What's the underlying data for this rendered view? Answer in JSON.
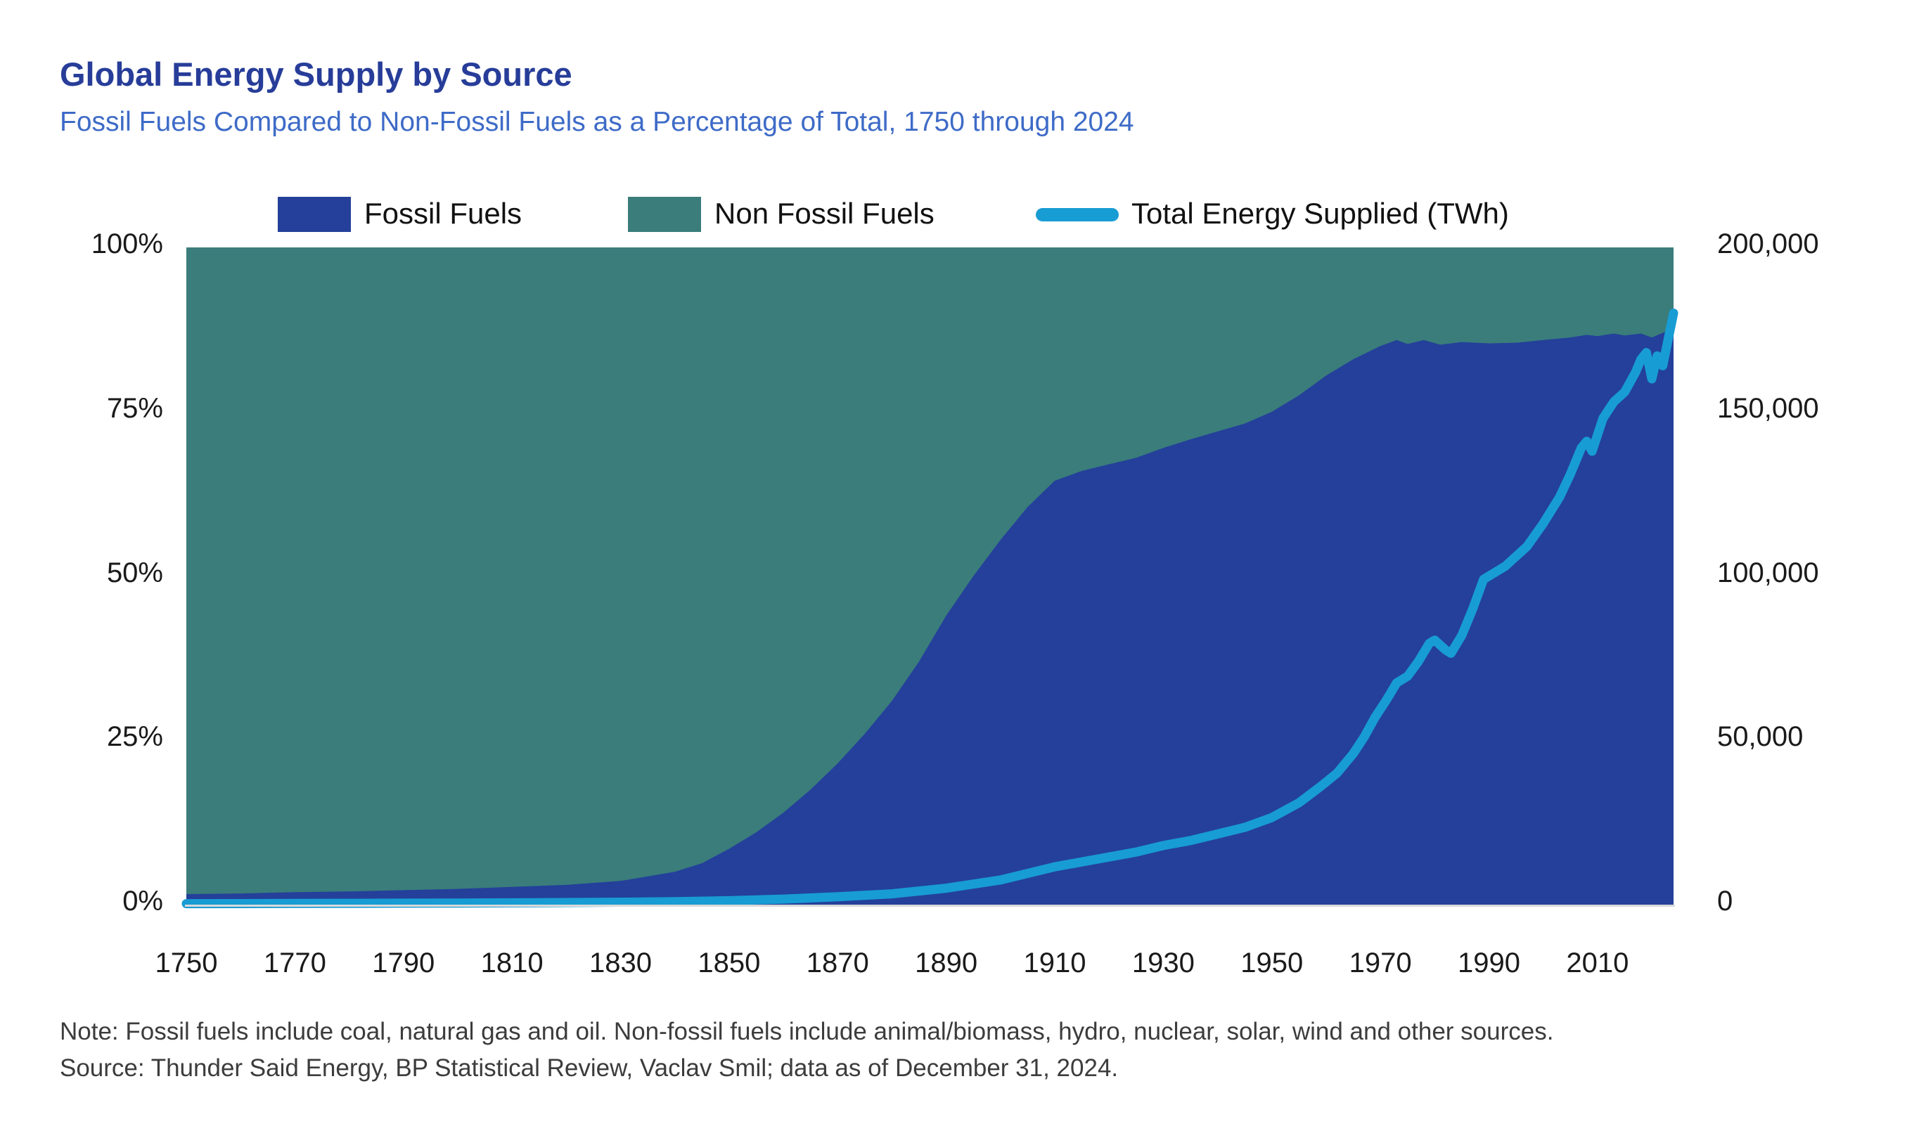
{
  "page": {
    "title": "Global Energy Supply by Source",
    "subtitle": "Fossil Fuels Compared to Non-Fossil Fuels as a Percentage of Total, 1750 through 2024",
    "note": "Note: Fossil fuels include coal, natural gas and oil. Non-fossil fuels include animal/biomass, hydro, nuclear, solar, wind and other sources.",
    "source": "Source: Thunder Said Energy, BP Statistical Review, Vaclav Smil; data as of December 31, 2024."
  },
  "colors": {
    "fossil": "#24409A",
    "non_fossil": "#3A7D7B",
    "total_line": "#189CD4",
    "title": "#273D99",
    "subtitle": "#3E6BC7",
    "axis_text": "#1A1A1A",
    "note_text": "#3C3C3C",
    "axis_line": "#D9D9D9"
  },
  "legend": {
    "items": [
      {
        "label": "Fossil Fuels",
        "swatch": "square",
        "color": "#24409A"
      },
      {
        "label": "Non Fossil Fuels",
        "swatch": "square",
        "color": "#3A7D7B"
      },
      {
        "label": "Total Energy Supplied (TWh)",
        "swatch": "line",
        "color": "#189CD4"
      }
    ]
  },
  "chart_data": {
    "type": "area",
    "title": "Global Energy Supply by Source",
    "subtitle": "Fossil Fuels Compared to Non-Fossil Fuels as a Percentage of Total, 1750 through 2024",
    "x_axis": {
      "min": 1750,
      "max": 2024,
      "tick_years": [
        1750,
        1770,
        1790,
        1810,
        1830,
        1850,
        1870,
        1890,
        1910,
        1930,
        1950,
        1970,
        1990,
        2010
      ]
    },
    "y_axis_left": {
      "unit": "percent",
      "min": 0,
      "max": 100,
      "tick_labels": [
        "100%",
        "75%",
        "50%",
        "25%",
        "0%"
      ],
      "tick_values": [
        100,
        75,
        50,
        25,
        0
      ]
    },
    "y_axis_right": {
      "unit": "TWh",
      "min": 0,
      "max": 200000,
      "tick_labels": [
        "200,000",
        "150,000",
        "100,000",
        "50,000",
        "0"
      ],
      "tick_values": [
        200000,
        150000,
        100000,
        50000,
        0
      ]
    },
    "grid": false,
    "legend_position": "top",
    "series": [
      {
        "name": "Fossil Fuels",
        "type": "area",
        "unit": "% of total",
        "color": "#24409A",
        "points": [
          [
            1750,
            1.6
          ],
          [
            1760,
            1.7
          ],
          [
            1770,
            1.9
          ],
          [
            1780,
            2.0
          ],
          [
            1790,
            2.2
          ],
          [
            1800,
            2.4
          ],
          [
            1810,
            2.7
          ],
          [
            1820,
            3.0
          ],
          [
            1830,
            3.6
          ],
          [
            1840,
            5.0
          ],
          [
            1845,
            6.3
          ],
          [
            1850,
            8.5
          ],
          [
            1855,
            11.0
          ],
          [
            1860,
            14.0
          ],
          [
            1865,
            17.5
          ],
          [
            1870,
            21.5
          ],
          [
            1875,
            26.0
          ],
          [
            1880,
            31.0
          ],
          [
            1885,
            37.0
          ],
          [
            1890,
            44.0
          ],
          [
            1895,
            50.0
          ],
          [
            1900,
            55.5
          ],
          [
            1905,
            60.5
          ],
          [
            1910,
            64.5
          ],
          [
            1915,
            66.0
          ],
          [
            1920,
            67.0
          ],
          [
            1925,
            68.0
          ],
          [
            1930,
            69.5
          ],
          [
            1935,
            70.8
          ],
          [
            1940,
            72.0
          ],
          [
            1945,
            73.2
          ],
          [
            1950,
            75.0
          ],
          [
            1955,
            77.5
          ],
          [
            1960,
            80.5
          ],
          [
            1965,
            83.0
          ],
          [
            1970,
            85.0
          ],
          [
            1973,
            85.9
          ],
          [
            1975,
            85.3
          ],
          [
            1978,
            85.9
          ],
          [
            1981,
            85.2
          ],
          [
            1985,
            85.6
          ],
          [
            1990,
            85.4
          ],
          [
            1995,
            85.5
          ],
          [
            2000,
            85.9
          ],
          [
            2005,
            86.3
          ],
          [
            2008,
            86.7
          ],
          [
            2010,
            86.5
          ],
          [
            2013,
            86.9
          ],
          [
            2015,
            86.6
          ],
          [
            2018,
            86.9
          ],
          [
            2020,
            86.3
          ],
          [
            2022,
            87.0
          ],
          [
            2024,
            87.6
          ]
        ]
      },
      {
        "name": "Non Fossil Fuels",
        "type": "area",
        "unit": "% of total",
        "color": "#3A7D7B",
        "definition": "complement_of_fossil_to_100_percent"
      },
      {
        "name": "Total Energy Supplied (TWh)",
        "type": "line",
        "unit": "TWh",
        "axis": "right",
        "color": "#189CD4",
        "points": [
          [
            1750,
            300
          ],
          [
            1760,
            330
          ],
          [
            1770,
            360
          ],
          [
            1780,
            400
          ],
          [
            1790,
            440
          ],
          [
            1800,
            500
          ],
          [
            1810,
            560
          ],
          [
            1820,
            640
          ],
          [
            1830,
            750
          ],
          [
            1840,
            900
          ],
          [
            1850,
            1200
          ],
          [
            1860,
            1700
          ],
          [
            1870,
            2400
          ],
          [
            1880,
            3300
          ],
          [
            1890,
            5000
          ],
          [
            1900,
            7500
          ],
          [
            1910,
            11500
          ],
          [
            1915,
            13000
          ],
          [
            1920,
            14500
          ],
          [
            1925,
            16000
          ],
          [
            1930,
            18000
          ],
          [
            1935,
            19500
          ],
          [
            1940,
            21500
          ],
          [
            1945,
            23500
          ],
          [
            1950,
            26500
          ],
          [
            1955,
            31000
          ],
          [
            1959,
            36000
          ],
          [
            1962,
            40000
          ],
          [
            1965,
            46000
          ],
          [
            1967,
            51000
          ],
          [
            1969,
            57000
          ],
          [
            1971,
            62000
          ],
          [
            1973,
            67500
          ],
          [
            1975,
            69500
          ],
          [
            1977,
            74000
          ],
          [
            1979,
            79500
          ],
          [
            1980,
            80500
          ],
          [
            1982,
            77500
          ],
          [
            1983,
            76500
          ],
          [
            1985,
            82000
          ],
          [
            1987,
            90000
          ],
          [
            1989,
            99000
          ],
          [
            1991,
            101000
          ],
          [
            1993,
            103000
          ],
          [
            1995,
            106000
          ],
          [
            1997,
            109000
          ],
          [
            2000,
            116000
          ],
          [
            2003,
            124000
          ],
          [
            2005,
            131000
          ],
          [
            2007,
            139000
          ],
          [
            2008,
            141000
          ],
          [
            2009,
            138000
          ],
          [
            2011,
            148000
          ],
          [
            2013,
            153000
          ],
          [
            2015,
            156000
          ],
          [
            2017,
            162000
          ],
          [
            2018,
            166000
          ],
          [
            2019,
            168000
          ],
          [
            2020,
            160000
          ],
          [
            2021,
            167000
          ],
          [
            2022,
            164000
          ],
          [
            2023,
            172000
          ],
          [
            2024,
            180000
          ]
        ]
      }
    ]
  }
}
